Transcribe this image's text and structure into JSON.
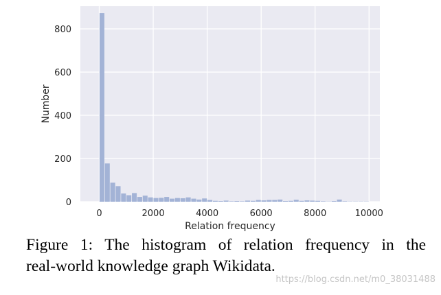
{
  "chart_data": {
    "type": "histogram",
    "xlabel": "Relation frequency",
    "ylabel": "Number",
    "xlim": [
      -700,
      10400
    ],
    "ylim": [
      0,
      905
    ],
    "bin_width": 200,
    "bin_edges_start": 0,
    "x_ticks": [
      0,
      2000,
      4000,
      6000,
      8000,
      10000
    ],
    "x_tick_labels": [
      "0",
      "2000",
      "4000",
      "6000",
      "8000",
      "10000"
    ],
    "y_ticks": [
      0,
      200,
      400,
      600,
      800
    ],
    "y_tick_labels": [
      "0",
      "200",
      "400",
      "600",
      "800"
    ],
    "values": [
      873,
      177,
      88,
      72,
      38,
      30,
      40,
      22,
      28,
      20,
      17,
      18,
      22,
      14,
      17,
      16,
      20,
      14,
      10,
      15,
      8,
      4,
      3,
      5,
      2,
      3,
      2,
      5,
      4,
      8,
      6,
      8,
      8,
      10,
      3,
      4,
      9,
      4,
      6,
      5,
      4,
      2,
      1,
      3,
      10,
      2,
      1,
      1,
      1,
      1
    ],
    "grid": true,
    "bar_color": "#a3b3d6",
    "background_color": "#eaeaf2",
    "grid_color": "#ffffff"
  },
  "caption": {
    "line1": "Figure 1: The histogram of relation frequency in the",
    "line2": "real-world knowledge graph Wikidata."
  },
  "watermark": "https://blog.csdn.net/m0_38031488"
}
